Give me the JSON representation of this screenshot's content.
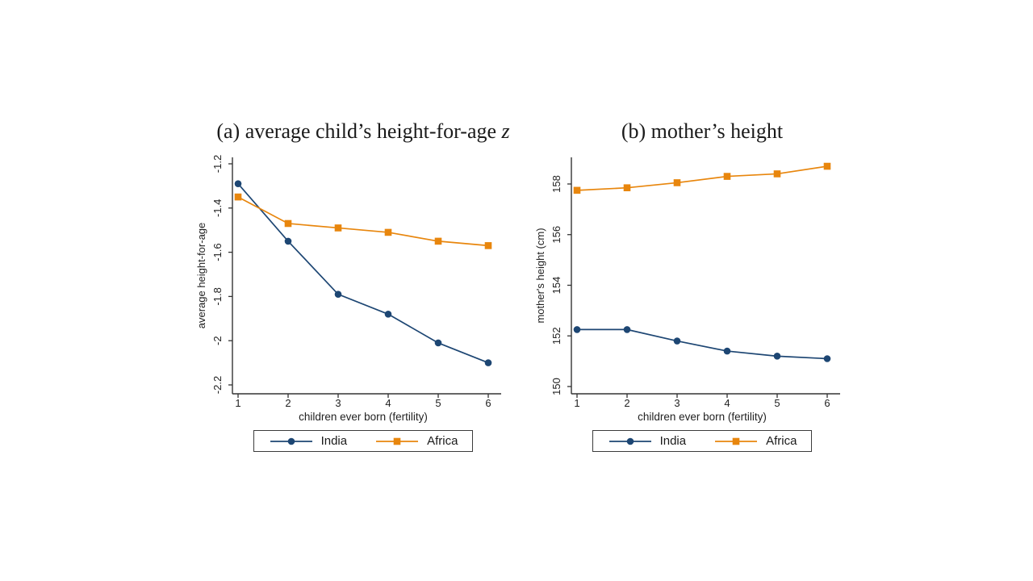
{
  "page": {
    "background": "#ffffff"
  },
  "colors": {
    "india": "#1d4673",
    "africa": "#e8860d",
    "axis": "#333333",
    "text": "#222222"
  },
  "chart_data": [
    {
      "type": "line",
      "panel_label": "a",
      "title": "(a) average child’s height-for-age z",
      "title_main": "(a) average child’s height-for-age ",
      "title_italic": "z",
      "xlabel": "children ever born (fertility)",
      "ylabel": "average height-for-age",
      "x": [
        1,
        2,
        3,
        4,
        5,
        6
      ],
      "xtick_labels": [
        "1",
        "2",
        "3",
        "4",
        "5",
        "6"
      ],
      "yticks": [
        -2.2,
        -2.0,
        -1.8,
        -1.6,
        -1.4,
        -1.2
      ],
      "ytick_labels": [
        "-2.2",
        "-2",
        "-1.8",
        "-1.6",
        "-1.4",
        "-1.2"
      ],
      "ylim": [
        -2.25,
        -1.15
      ],
      "grid": false,
      "legend_position": "bottom",
      "series": [
        {
          "name": "India",
          "marker": "circle",
          "color": "#1d4673",
          "values": [
            -1.29,
            -1.55,
            -1.79,
            -1.88,
            -2.01,
            -2.1
          ]
        },
        {
          "name": "Africa",
          "marker": "square",
          "color": "#e8860d",
          "values": [
            -1.35,
            -1.47,
            -1.49,
            -1.51,
            -1.55,
            -1.57
          ]
        }
      ]
    },
    {
      "type": "line",
      "panel_label": "b",
      "title": "(b) mother’s height",
      "title_main": "(b) mother’s height",
      "title_italic": "",
      "xlabel": "children ever born (fertility)",
      "ylabel": "mother's height (cm)",
      "x": [
        1,
        2,
        3,
        4,
        5,
        6
      ],
      "xtick_labels": [
        "1",
        "2",
        "3",
        "4",
        "5",
        "6"
      ],
      "yticks": [
        150,
        152,
        154,
        156,
        158
      ],
      "ytick_labels": [
        "150",
        "152",
        "154",
        "156",
        "158"
      ],
      "ylim": [
        149.7,
        158.9
      ],
      "grid": false,
      "legend_position": "bottom",
      "series": [
        {
          "name": "India",
          "marker": "circle",
          "color": "#1d4673",
          "values": [
            152.25,
            152.25,
            151.8,
            151.4,
            151.2,
            151.1
          ]
        },
        {
          "name": "Africa",
          "marker": "square",
          "color": "#e8860d",
          "values": [
            157.75,
            157.85,
            158.05,
            158.3,
            158.4,
            158.7
          ]
        }
      ]
    }
  ]
}
